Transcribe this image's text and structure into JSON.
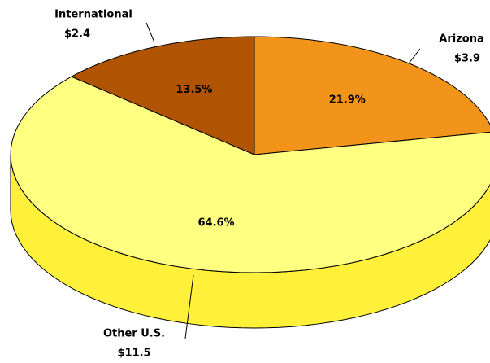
{
  "chart_data": {
    "type": "pie3d",
    "categories": [
      "Arizona",
      "Other U.S.",
      "International"
    ],
    "values": [
      21.9,
      64.6,
      13.5
    ],
    "value_labels": [
      "21.9%",
      "64.6%",
      "13.5%"
    ],
    "amounts": [
      3.9,
      11.5,
      2.4
    ],
    "amount_labels": [
      "$3.9",
      "$11.5",
      "$2.4"
    ],
    "colors": [
      "#f3941a",
      "#ffff80",
      "#b05402"
    ],
    "side_colors": [
      "#c8740c",
      "#fff03a",
      "#8a4000"
    ]
  }
}
